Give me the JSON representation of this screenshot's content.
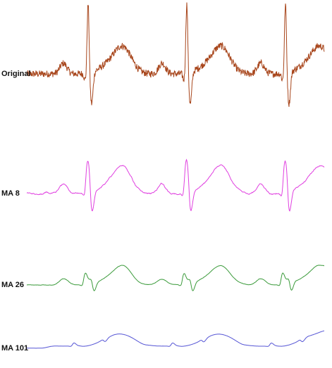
{
  "panels": [
    {
      "label": "Original",
      "color": "#a8461c"
    },
    {
      "label": "MA 8",
      "color": "#e040e0"
    },
    {
      "label": "MA 26",
      "color": "#3a9a3a"
    },
    {
      "label": "MA 101",
      "color": "#5555d5"
    }
  ]
}
